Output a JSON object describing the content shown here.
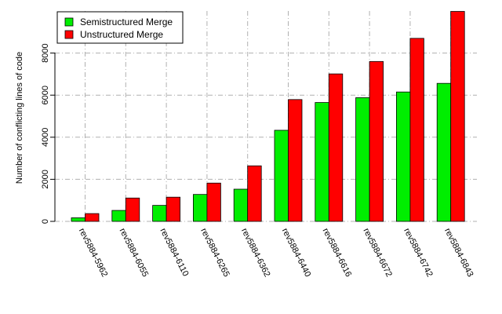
{
  "chart_data": {
    "type": "bar",
    "ylabel": "Number of conflicting lines of code",
    "xlabel": "",
    "title": "",
    "ylim": [
      0,
      10000
    ],
    "yticks": [
      0,
      2000,
      4000,
      6000,
      8000
    ],
    "grid": true,
    "legend_position": "top-left",
    "categories": [
      "rev5884-5962",
      "rev5884-6055",
      "rev5884-6110",
      "rev5884-6265",
      "rev5884-6362",
      "rev5884-6440",
      "rev5884-6616",
      "rev5884-6672",
      "rev5884-6742",
      "rev5884-6843"
    ],
    "series": [
      {
        "name": "Semistructured Merge",
        "color": "#00ee00",
        "values": [
          170,
          520,
          760,
          1280,
          1530,
          4330,
          5650,
          5880,
          6150,
          6560
        ]
      },
      {
        "name": "Unstructured Merge",
        "color": "#ff0000",
        "values": [
          370,
          1110,
          1150,
          1820,
          2640,
          5790,
          7010,
          7600,
          8700,
          9980
        ]
      }
    ]
  }
}
